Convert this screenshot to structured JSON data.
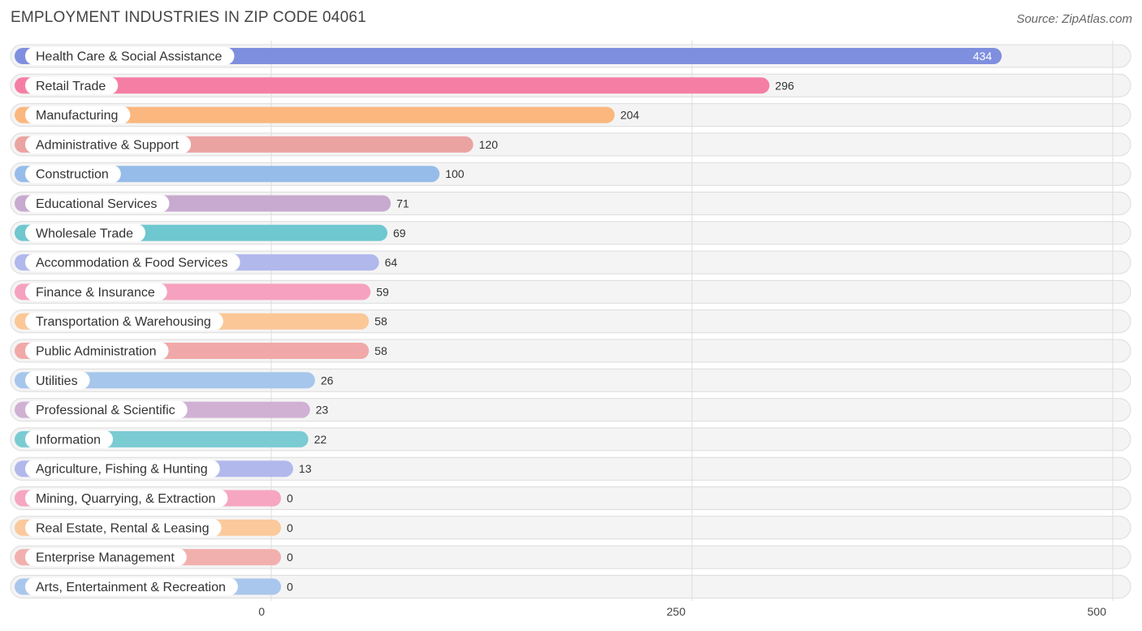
{
  "title": "EMPLOYMENT INDUSTRIES IN ZIP CODE 04061",
  "source": "Source: ZipAtlas.com",
  "chart_data": {
    "type": "bar",
    "orientation": "horizontal",
    "title": "EMPLOYMENT INDUSTRIES IN ZIP CODE 04061",
    "xlabel": "",
    "ylabel": "",
    "xlim": [
      0,
      500
    ],
    "ticks": [
      0,
      250,
      500
    ],
    "tick_labels": [
      "0",
      "250",
      "500"
    ],
    "grid": true,
    "categories": [
      "Health Care & Social Assistance",
      "Retail Trade",
      "Manufacturing",
      "Administrative & Support",
      "Construction",
      "Educational Services",
      "Wholesale Trade",
      "Accommodation & Food Services",
      "Finance & Insurance",
      "Transportation & Warehousing",
      "Public Administration",
      "Utilities",
      "Professional & Scientific",
      "Information",
      "Agriculture, Fishing & Hunting",
      "Mining, Quarrying, & Extraction",
      "Real Estate, Rental & Leasing",
      "Enterprise Management",
      "Arts, Entertainment & Recreation"
    ],
    "values": [
      434,
      296,
      204,
      120,
      100,
      71,
      69,
      64,
      59,
      58,
      58,
      26,
      23,
      22,
      13,
      0,
      0,
      0,
      0
    ],
    "value_labels": [
      "434",
      "296",
      "204",
      "120",
      "100",
      "71",
      "69",
      "64",
      "59",
      "58",
      "58",
      "26",
      "23",
      "22",
      "13",
      "0",
      "0",
      "0",
      "0"
    ],
    "colors": [
      "#7f8fdf",
      "#f57fa4",
      "#fbb77e",
      "#eba3a2",
      "#96bce9",
      "#c8a9cf",
      "#6fc7cf",
      "#b0b8ec",
      "#f6a1bf",
      "#fbc796",
      "#f0a9a8",
      "#a6c6ec",
      "#d0b1d4",
      "#7bcbd3",
      "#b1b8ec",
      "#f6a6c1",
      "#fbc99b",
      "#f1b0ae",
      "#a9c6ec"
    ]
  }
}
